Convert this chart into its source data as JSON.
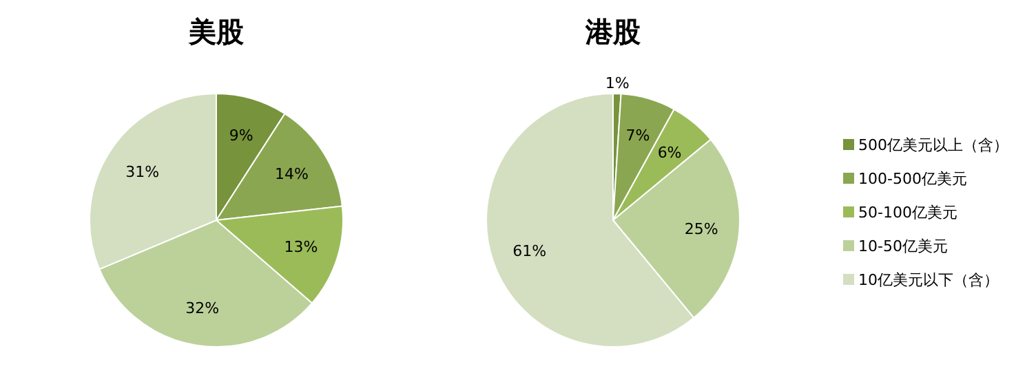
{
  "chart_data": [
    {
      "type": "pie",
      "title": "美股",
      "categories": [
        null,
        null,
        null,
        null,
        null
      ],
      "values": [
        9,
        14,
        13,
        32,
        31
      ],
      "value_labels": [
        "9%",
        "14%",
        "13%",
        "32%",
        "31%"
      ],
      "colors": [
        "#77933c",
        "#8ba650",
        "#9bbb59",
        "#bcd19a",
        "#d3dfc0"
      ]
    },
    {
      "type": "pie",
      "title": "港股",
      "categories": [
        "500亿美元以上（含）",
        "100-500亿美元",
        "50-100亿美元",
        "10-50亿美元",
        "10亿美元以下（含）"
      ],
      "values": [
        1,
        7,
        6,
        25,
        61
      ],
      "value_labels": [
        "1%",
        "7%",
        "6%",
        "25%",
        "61%"
      ],
      "colors": [
        "#77933c",
        "#8ba650",
        "#9bbb59",
        "#bcd19a",
        "#d3dfc0"
      ],
      "legend": "right"
    }
  ]
}
